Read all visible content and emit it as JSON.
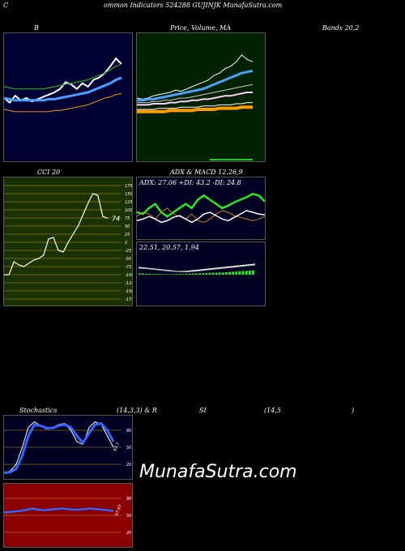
{
  "header": {
    "title": "ommon  Indicators 524288  GUJINJK MunafaSutra.com",
    "prefix": "C"
  },
  "labels": {
    "bbands_left": "B",
    "bbands_mid": "Price,  Volume,  MA",
    "bbands_right": "Bands 20,2",
    "cci": "CCI 20",
    "adx_title": "ADX  & MACD 12,26,9",
    "adx_values": "ADX: 27.06  +DI: 43.2  -DI: 24.8",
    "macd_values": "22.51,  20.57,  1.94",
    "stoch_left": "Stochastics",
    "stoch_mid": "(14,3,3) & R",
    "stoch_right1": "SI",
    "stoch_right2": "(14,5",
    "stoch_right3": ")",
    "watermark": "MunafaSutra.com"
  },
  "colors": {
    "bb_bg": "#000033",
    "price_bg": "#002200",
    "cci_bg": "#1a3300",
    "adx_bg": "#000022",
    "stoch_bg": "#000022",
    "rsi_bg": "#8b0000"
  },
  "chart_data": [
    {
      "type": "line",
      "name": "bollinger",
      "series": [
        {
          "name": "price",
          "color": "#ffffff",
          "values": [
            50,
            46,
            52,
            48,
            50,
            47,
            49,
            51,
            53,
            55,
            58,
            64,
            62,
            58,
            63,
            60,
            66,
            68,
            72,
            78,
            85,
            80
          ]
        },
        {
          "name": "upper",
          "color": "#22aa22",
          "values": [
            60,
            59,
            58,
            58,
            58,
            58,
            58,
            58,
            59,
            60,
            61,
            62,
            63,
            64,
            65,
            66,
            68,
            70,
            72,
            75,
            78,
            80
          ]
        },
        {
          "name": "middle",
          "color": "#4aa0ff",
          "values": [
            50,
            49,
            48,
            48,
            48,
            48,
            48,
            48,
            49,
            49,
            50,
            51,
            52,
            53,
            54,
            55,
            57,
            59,
            61,
            63,
            66,
            68
          ]
        },
        {
          "name": "lower",
          "color": "#d08020",
          "values": [
            40,
            39,
            38,
            38,
            38,
            38,
            38,
            38,
            38,
            39,
            39,
            40,
            41,
            42,
            43,
            44,
            46,
            48,
            50,
            51,
            53,
            54
          ]
        }
      ],
      "yrange": [
        0,
        100
      ]
    },
    {
      "type": "line",
      "name": "price_ma",
      "series": [
        {
          "name": "price",
          "values": [
            50,
            49,
            50,
            52,
            53,
            54,
            55,
            57,
            56,
            58,
            60,
            62,
            64,
            66,
            70,
            72,
            76,
            78,
            82,
            88,
            84,
            82
          ]
        },
        {
          "name": "ma1",
          "values": [
            48,
            48,
            49,
            49,
            50,
            51,
            52,
            53,
            54,
            55,
            56,
            57,
            58,
            60,
            62,
            64,
            66,
            68,
            70,
            72,
            73,
            74
          ]
        },
        {
          "name": "ma2",
          "values": [
            46,
            46,
            46,
            47,
            47,
            48,
            48,
            49,
            50,
            50,
            51,
            52,
            53,
            54,
            55,
            56,
            57,
            58,
            59,
            60,
            61,
            62
          ]
        },
        {
          "name": "ma3",
          "values": [
            44,
            44,
            44,
            45,
            45,
            45,
            46,
            46,
            47,
            47,
            48,
            48,
            49,
            49,
            50,
            51,
            52,
            52,
            53,
            54,
            55,
            55
          ]
        },
        {
          "name": "ma4",
          "values": [
            40,
            40,
            40,
            40,
            41,
            41,
            41,
            41,
            42,
            42,
            42,
            42,
            43,
            43,
            43,
            44,
            44,
            44,
            45,
            45,
            46,
            46
          ]
        },
        {
          "name": "ma5",
          "values": [
            38,
            38,
            38,
            38,
            38,
            38,
            39,
            39,
            39,
            39,
            39,
            40,
            40,
            40,
            40,
            41,
            41,
            41,
            41,
            42,
            42,
            42
          ]
        }
      ],
      "yrange": [
        0,
        100
      ]
    },
    {
      "type": "line",
      "name": "cci",
      "ticks": [
        "175",
        "150",
        "125",
        "100",
        "75",
        "50",
        "25",
        "0",
        "-25",
        "-50",
        "-75",
        "-100",
        "-125",
        "-150",
        "-175"
      ],
      "values": [
        -100,
        -100,
        -60,
        -70,
        -75,
        -65,
        -55,
        -50,
        -40,
        10,
        15,
        -25,
        -30,
        0,
        25,
        50,
        85,
        120,
        150,
        145,
        80,
        74
      ],
      "last_label": "74",
      "yrange": [
        -175,
        175
      ]
    },
    {
      "type": "line",
      "name": "adx",
      "series": [
        {
          "name": "+DI",
          "color": "#22ee22",
          "values": [
            30,
            28,
            35,
            40,
            30,
            25,
            30,
            35,
            40,
            35,
            45,
            50,
            45,
            40,
            35,
            38,
            42,
            45,
            48,
            52,
            50,
            43
          ]
        },
        {
          "name": "-DI",
          "color": "#d08020",
          "values": [
            25,
            30,
            28,
            22,
            30,
            35,
            28,
            25,
            22,
            28,
            20,
            18,
            22,
            28,
            32,
            30,
            26,
            24,
            22,
            20,
            22,
            25
          ]
        },
        {
          "name": "ADX",
          "color": "#ffffff",
          "values": [
            20,
            22,
            25,
            22,
            18,
            20,
            24,
            26,
            22,
            18,
            22,
            28,
            30,
            26,
            22,
            20,
            24,
            28,
            32,
            30,
            28,
            27
          ]
        }
      ],
      "yrange": [
        0,
        60
      ]
    },
    {
      "type": "bar",
      "name": "macd",
      "values": [
        5,
        5,
        4,
        4,
        3,
        3,
        3,
        2,
        2,
        2,
        2,
        3,
        3,
        3,
        4,
        4,
        5,
        5,
        6,
        6,
        7,
        7,
        8,
        8,
        9,
        9,
        10,
        11,
        12,
        13,
        14,
        15,
        16,
        17,
        18
      ],
      "lines": [
        {
          "name": "macd",
          "values": [
            22,
            20,
            18,
            16,
            14,
            12,
            12,
            14,
            16,
            18,
            20,
            22,
            24,
            26,
            28,
            30
          ]
        },
        {
          "name": "signal",
          "values": [
            20,
            19,
            17,
            15,
            13,
            12,
            11,
            12,
            14,
            16,
            18,
            20,
            22,
            24,
            26,
            28
          ]
        }
      ]
    },
    {
      "type": "line",
      "name": "stochastic",
      "ticks": [
        "80",
        "50",
        "20"
      ],
      "series": [
        {
          "name": "%K",
          "color": "#ffffff",
          "values": [
            5,
            8,
            20,
            50,
            85,
            95,
            88,
            82,
            85,
            90,
            92,
            80,
            60,
            55,
            85,
            95,
            90,
            70,
            50
          ]
        },
        {
          "name": "%D",
          "color": "#3366ff",
          "values": [
            5,
            6,
            12,
            35,
            70,
            90,
            88,
            84,
            84,
            88,
            90,
            85,
            70,
            58,
            75,
            90,
            92,
            80,
            60
          ]
        }
      ],
      "last_label": "63.1",
      "yrange": [
        0,
        100
      ]
    },
    {
      "type": "line",
      "name": "rsi",
      "ticks": [
        "80",
        "50",
        "20"
      ],
      "values": [
        55,
        56,
        57,
        58,
        60,
        62,
        60,
        59,
        60,
        61,
        62,
        61,
        60,
        60,
        61,
        62,
        61,
        60,
        59,
        58
      ],
      "last_label": "57.93",
      "yrange": [
        0,
        100
      ]
    }
  ]
}
